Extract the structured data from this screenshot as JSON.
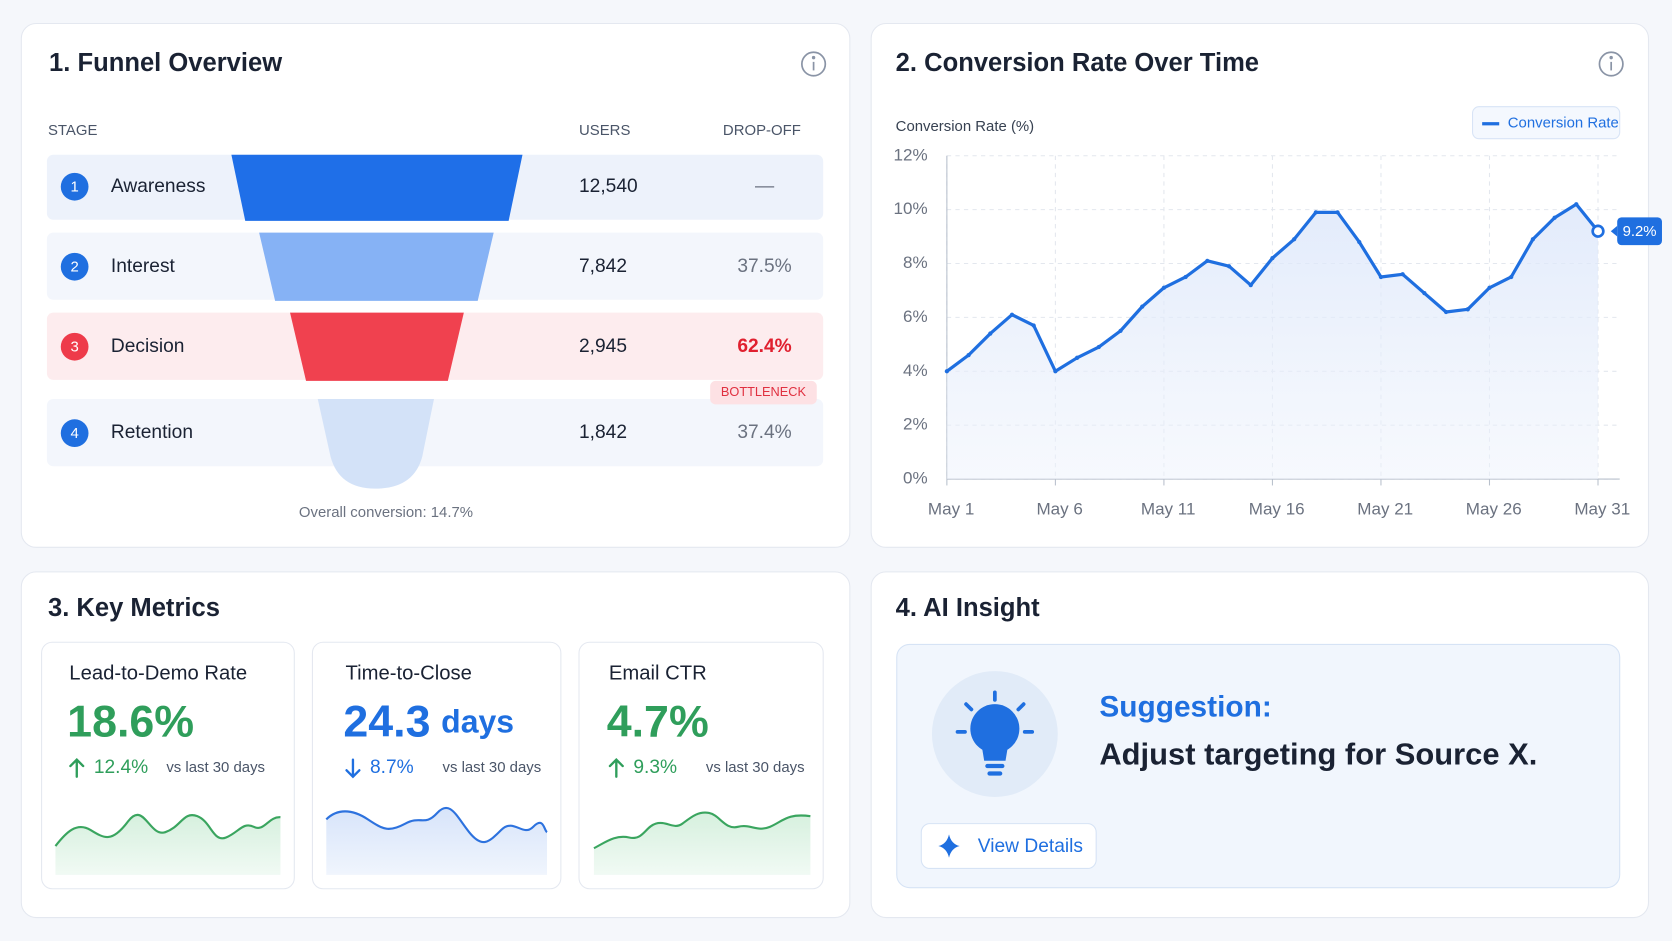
{
  "panels": {
    "funnel": {
      "title": "1. Funnel Overview",
      "headers": [
        "STAGE",
        "USERS",
        "DROP-OFF"
      ],
      "stages": [
        {
          "number": "1",
          "name": "Awareness",
          "users": "12,540",
          "drop_off": "—"
        },
        {
          "number": "2",
          "name": "Interest",
          "users": "7,842",
          "drop_off": "37.5%"
        },
        {
          "number": "3",
          "name": "Decision",
          "users": "2,945",
          "drop_off": "62.4%"
        },
        {
          "number": "4",
          "name": "Retention",
          "users": "1,842",
          "drop_off": "37.4%"
        }
      ],
      "badge": "BOTTLENECK",
      "footer": "Overall conversion: 14.7%"
    },
    "metrics": {
      "title": "3. Key Metrics",
      "cards": [
        {
          "label": "Lead-to-Demo Rate",
          "value": "18.6%",
          "change": "12.4%",
          "direction": "up",
          "color": "#2f9e5b",
          "comparison": "vs last 30 days"
        },
        {
          "label": "Time-to-Close",
          "value": "24.3",
          "unit": "days",
          "change": "8.7%",
          "direction": "down",
          "color": "#1f6fe0",
          "comparison": "vs last 30 days"
        },
        {
          "label": "Email CTR",
          "value": "4.7%",
          "change": "9.3%",
          "direction": "up",
          "color": "#2f9e5b",
          "comparison": "vs last 30 days"
        }
      ]
    },
    "insight": {
      "title": "4. AI Insight",
      "heading": "Suggestion:",
      "text": "Adjust targeting for Source X.",
      "button": "View Details"
    }
  },
  "chart_data": {
    "type": "line",
    "title": "2. Conversion Rate Over Time",
    "y_label": "Conversion Rate (%)",
    "x": [
      1,
      2,
      3,
      4,
      5,
      6,
      7,
      8,
      9,
      10,
      11,
      12,
      13,
      14,
      15,
      16,
      17,
      18,
      19,
      20,
      21,
      22,
      23,
      24,
      25,
      26,
      27,
      28,
      29,
      30,
      31
    ],
    "xlim": [
      1,
      32
    ],
    "xticks": [
      {
        "value": 1,
        "label": "May 1"
      },
      {
        "value": 6,
        "label": "May 6"
      },
      {
        "value": 11,
        "label": "May 11"
      },
      {
        "value": 16,
        "label": "May 16"
      },
      {
        "value": 21,
        "label": "May 21"
      },
      {
        "value": 26,
        "label": "May 26"
      },
      {
        "value": 31,
        "label": "May 31"
      }
    ],
    "ylim": [
      0,
      12
    ],
    "yticks": [
      {
        "value": 0,
        "label": "0%"
      },
      {
        "value": 2,
        "label": "2%"
      },
      {
        "value": 4,
        "label": "4%"
      },
      {
        "value": 6,
        "label": "6%"
      },
      {
        "value": 8,
        "label": "8%"
      },
      {
        "value": 10,
        "label": "10%"
      },
      {
        "value": 12,
        "label": "12%"
      }
    ],
    "grid": true,
    "series": [
      {
        "name": "Conversion Rate",
        "color": "#1f6fe0",
        "values": [
          4.0,
          4.6,
          5.4,
          6.1,
          5.7,
          4.0,
          4.5,
          4.9,
          5.5,
          6.4,
          7.1,
          7.5,
          8.1,
          7.9,
          7.2,
          8.2,
          8.9,
          9.9,
          9.9,
          8.8,
          7.5,
          7.6,
          6.9,
          6.2,
          6.3,
          7.1,
          7.5,
          8.9,
          9.7,
          10.2,
          9.2
        ],
        "value_labels": [
          null,
          null,
          null,
          null,
          null,
          null,
          null,
          null,
          null,
          null,
          null,
          null,
          null,
          null,
          null,
          null,
          null,
          null,
          null,
          null,
          null,
          null,
          null,
          null,
          null,
          null,
          null,
          null,
          null,
          null,
          "9.2%"
        ]
      }
    ]
  }
}
